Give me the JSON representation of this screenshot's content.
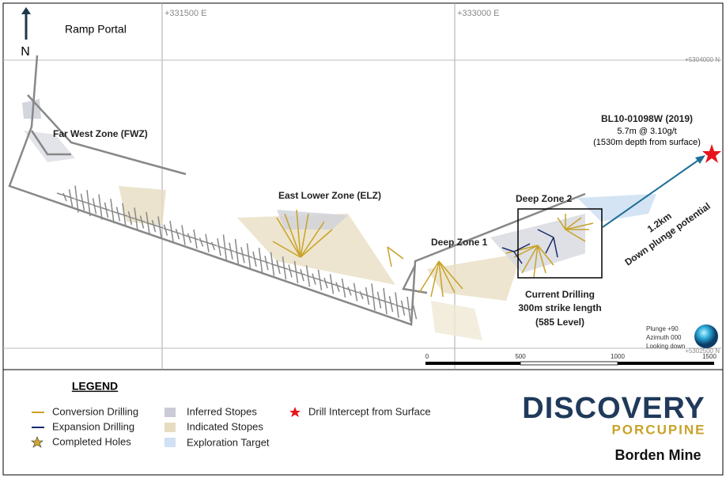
{
  "map": {
    "grid_labels": [
      "+331500 E",
      "+333000 E",
      "+5304000 N",
      "+5302500 N"
    ],
    "north": "N",
    "ramp_portal": "Ramp Portal",
    "zones": [
      "Far West Zone (FWZ)",
      "East Lower Zone (ELZ)",
      "Deep Zone 2",
      "Deep Zone 1"
    ],
    "current_drilling": [
      "Current Drilling",
      "300m strike length",
      "(585 Level)"
    ],
    "intercept": [
      "BL10-01098W (2019)",
      "5.7m @ 3.10g/t",
      "(1530m depth from surface)"
    ],
    "plunge": [
      "1.2km",
      "Down plunge potential"
    ],
    "view": [
      "Plunge +90",
      "Azimuth 000",
      "Looking down"
    ],
    "scale": [
      "0",
      "500",
      "1000",
      "1500"
    ]
  },
  "legend": {
    "title": "LEGEND",
    "items": [
      "Conversion Drilling",
      "Expansion Drilling",
      "Completed Holes",
      "Inferred Stopes",
      "Indicated Stopes",
      "Exploration Target",
      "Drill Intercept from Surface"
    ]
  },
  "logo": {
    "name": "DISCOVERY",
    "sub": "PORCUPINE",
    "site": "Borden Mine"
  }
}
